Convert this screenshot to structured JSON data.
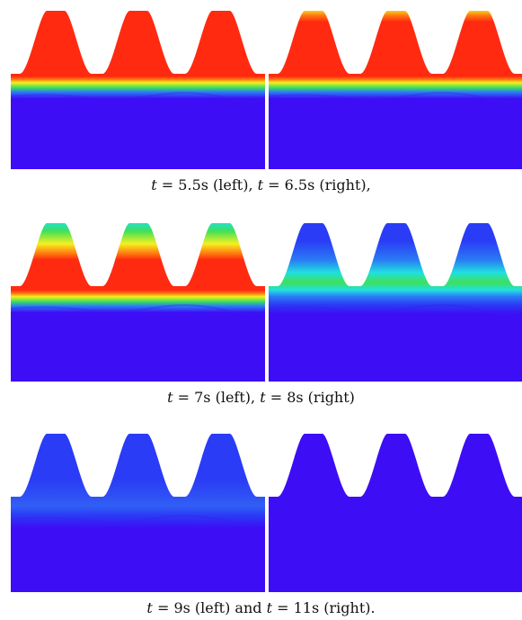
{
  "figure": {
    "colors": {
      "background_fluid": "#3d0df5",
      "red": "#ff2a10",
      "orange": "#ff7a10",
      "yellow": "#f5f020",
      "green": "#3ee05a",
      "cyan": "#20e0e0",
      "light_blue": "#2a7af5",
      "mid_blue": "#2a3cf5",
      "dark_blue": "#3a10f0"
    },
    "rows": [
      {
        "caption": {
          "t1": "t",
          "eq1": " = 5.5s (left), ",
          "t2": "t",
          "eq2": " = 6.5s (right),"
        },
        "panels": [
          {
            "name": "t=5.5s",
            "scheme": "red-full"
          },
          {
            "name": "t=6.5s",
            "scheme": "red-yellow-tips"
          }
        ]
      },
      {
        "caption": {
          "t1": "t",
          "eq1": " = 7s (left), ",
          "t2": "t",
          "eq2": " = 8s (right)"
        },
        "panels": [
          {
            "name": "t=7s",
            "scheme": "red-green-tips"
          },
          {
            "name": "t=8s",
            "scheme": "blue-green-band"
          }
        ]
      },
      {
        "caption": {
          "t1": "t",
          "eq1": " = 9s (left) and ",
          "t2": "t",
          "eq2": " = 11s (right)."
        },
        "panels": [
          {
            "name": "t=9s",
            "scheme": "blue-faint"
          },
          {
            "name": "t=11s",
            "scheme": "blue-uniform"
          }
        ]
      }
    ]
  }
}
